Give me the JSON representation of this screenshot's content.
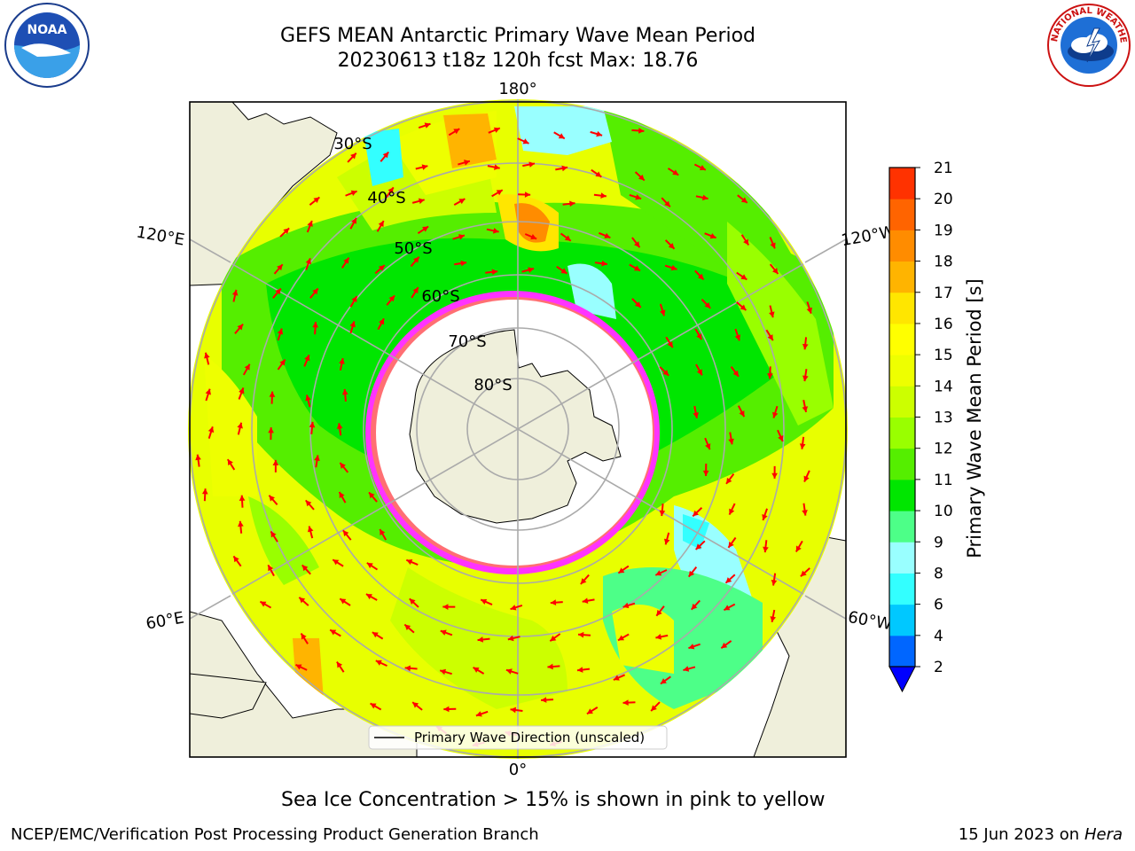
{
  "header": {
    "title_line1": "GEFS MEAN Antarctic Primary Wave Mean Period",
    "title_line2": "20230613 t18z 120h fcst   Max: 18.76"
  },
  "logos": {
    "left": {
      "icon": "noaa-logo",
      "text": "NOAA"
    },
    "right": {
      "icon": "national-weather-service-logo",
      "text": "NATIONAL WEATHER SERVICE"
    }
  },
  "map": {
    "projection": "south-polar-stereographic",
    "longitude_labels": [
      "180°",
      "120°E",
      "120°W",
      "60°E",
      "60°W",
      "0°"
    ],
    "latitude_labels": [
      "30°S",
      "40°S",
      "50°S",
      "60°S",
      "70°S",
      "80°S"
    ],
    "legend_label": "Primary Wave Direction (unscaled)",
    "arrow_color": "#ff0000",
    "sea_ice_colors": [
      "#ff33ff",
      "#ffa000",
      "#ffff00"
    ]
  },
  "colorbar": {
    "label": "Primary Wave Mean Period [s]",
    "ticks": [
      "2",
      "4",
      "6",
      "8",
      "9",
      "10",
      "11",
      "12",
      "13",
      "14",
      "15",
      "16",
      "17",
      "18",
      "19",
      "20",
      "21"
    ],
    "colors": [
      "#0066ff",
      "#00c8ff",
      "#33ffff",
      "#99ffff",
      "#4dff88",
      "#00e600",
      "#55ee00",
      "#99ff00",
      "#ccff00",
      "#eeff00",
      "#ffff00",
      "#ffe600",
      "#ffb400",
      "#ff8c00",
      "#ff6400",
      "#ff3200"
    ],
    "extend_color": "#0000ff"
  },
  "note": "Sea Ice Concentration > 15% is shown in pink to yellow",
  "footer": {
    "left": "NCEP/EMC/Verification Post Processing Product Generation Branch",
    "date": "15 Jun 2023 on",
    "machine": "Hera"
  }
}
